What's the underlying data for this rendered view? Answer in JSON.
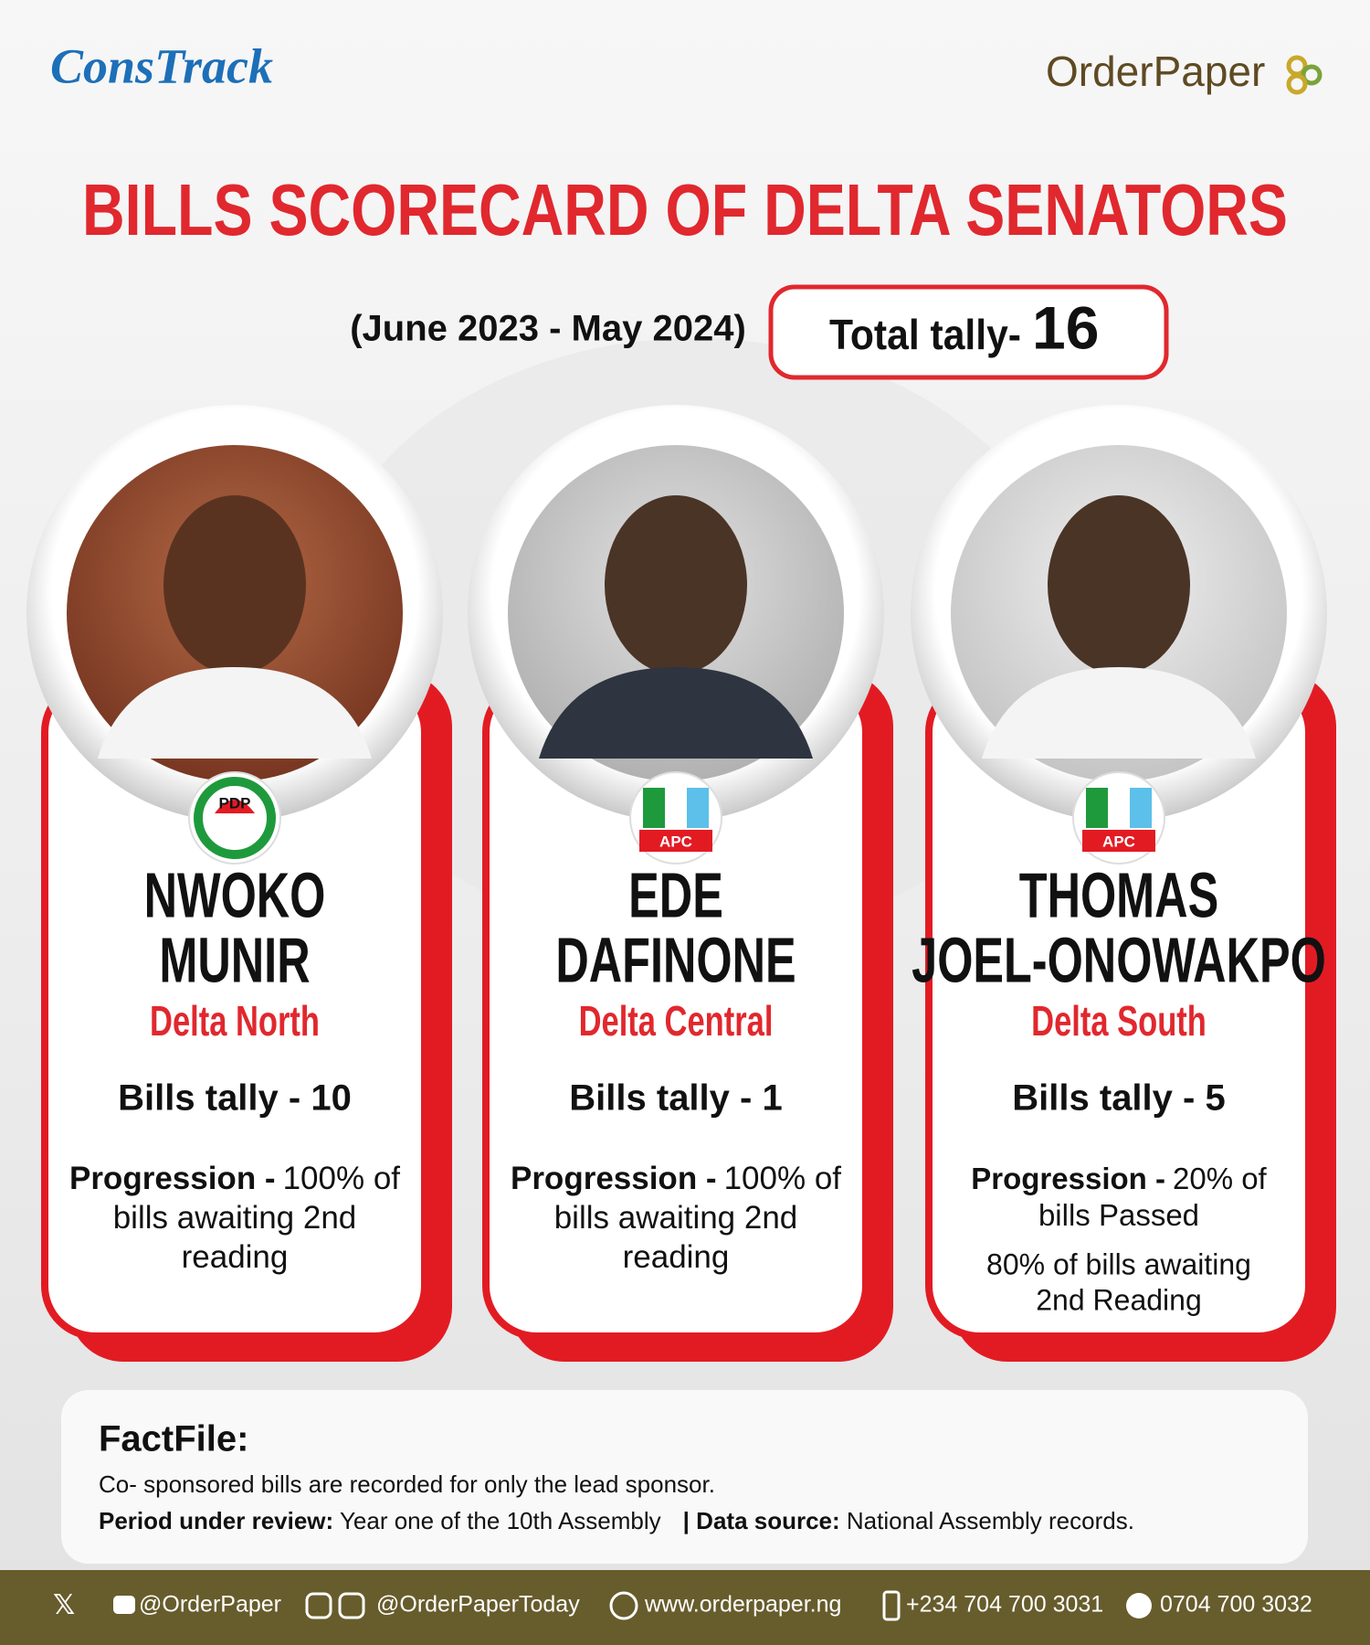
{
  "header": {
    "left_logo": "ConsTrack",
    "right_logo": "OrderPaper"
  },
  "title": "BILLS SCORECARD OF DELTA SENATORS",
  "period": "(June 2023 - May 2024)",
  "total": {
    "label": "Total tally-",
    "value": "16"
  },
  "progression_label": "Progression -",
  "senators": [
    {
      "party": "PDP",
      "name_lines": [
        "NWOKO",
        "MUNIR"
      ],
      "district": "Delta North",
      "bills": "Bills tally - 10",
      "progression": [
        "100% of",
        "bills awaiting 2nd",
        "reading"
      ],
      "extra": []
    },
    {
      "party": "APC",
      "name_lines": [
        "EDE",
        "DAFINONE"
      ],
      "district": "Delta Central",
      "bills": "Bills tally - 1",
      "progression": [
        "100% of",
        "bills awaiting 2nd",
        "reading"
      ],
      "extra": []
    },
    {
      "party": "APC",
      "name_lines": [
        "THOMAS",
        "JOEL-ONOWAKPO"
      ],
      "district": "Delta South",
      "bills": "Bills tally - 5",
      "progression": [
        "20% of",
        "bills Passed"
      ],
      "extra": [
        "80% of bills awaiting",
        "2nd Reading"
      ]
    }
  ],
  "factfile": {
    "title": "FactFile:",
    "note": "Co- sponsored bills are recorded for only the lead sponsor.",
    "period_label": "Period under review:",
    "period_text": " Year one of the 10th Assembly",
    "source_label": "| Data source:",
    "source_text": " National Assembly records."
  },
  "footer": [
    "@OrderPaper",
    "@OrderPaperToday",
    "www.orderpaper.ng",
    "+234 704 700 3031",
    "0704 700 3032"
  ]
}
